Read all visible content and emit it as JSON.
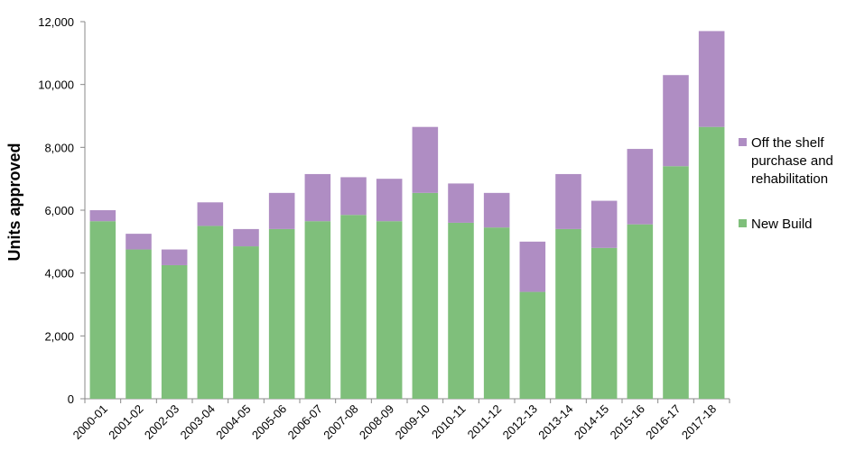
{
  "chart_data": {
    "type": "bar",
    "stacked": true,
    "categories": [
      "2000-01",
      "2001-02",
      "2002-03",
      "2003-04",
      "2004-05",
      "2005-06",
      "2006-07",
      "2007-08",
      "2008-09",
      "2009-10",
      "2010-11",
      "2011-12",
      "2012-13",
      "2013-14",
      "2014-15",
      "2015-16",
      "2016-17",
      "2017-18"
    ],
    "series": [
      {
        "name": "New Build",
        "color": "#7fbf7b",
        "values": [
          5650,
          4750,
          4250,
          5500,
          4850,
          5400,
          5650,
          5850,
          5650,
          6550,
          5600,
          5450,
          3400,
          5400,
          4800,
          5550,
          7400,
          8650
        ]
      },
      {
        "name": "Off the shelf purchase and rehabilitation",
        "color": "#af8dc3",
        "values": [
          350,
          500,
          500,
          750,
          550,
          1150,
          1500,
          1200,
          1350,
          2100,
          1250,
          1100,
          1600,
          1750,
          1500,
          2400,
          2900,
          3050
        ]
      }
    ],
    "ylabel": "Units approved",
    "ylim": [
      0,
      12000
    ],
    "yticks": [
      "0",
      "2,000",
      "4,000",
      "6,000",
      "8,000",
      "10,000",
      "12,000"
    ],
    "grid": false,
    "legend": {
      "position": "right",
      "items": [
        {
          "lines": [
            "Off the shelf",
            "purchase and",
            "rehabilitation"
          ],
          "color": "#af8dc3"
        },
        {
          "lines": [
            "New Build"
          ],
          "color": "#7fbf7b"
        }
      ]
    }
  }
}
